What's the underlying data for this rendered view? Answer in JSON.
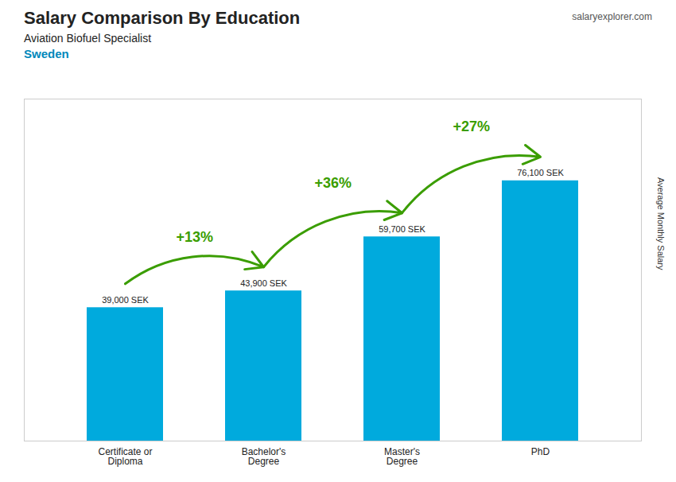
{
  "chart_data": {
    "type": "bar",
    "title": "Salary Comparison By Education",
    "subtitle": [
      "Aviation Biofuel Specialist",
      "Sweden"
    ],
    "caption": "salaryexplorer.com",
    "ylabel": "Average Monthly Salary",
    "categories": [
      "Certificate or\nDiploma",
      "Bachelor's\nDegree",
      "Master's\nDegree",
      "PhD"
    ],
    "values": [
      39000,
      43900,
      59700,
      76100
    ],
    "value_labels": [
      "39,000 SEK",
      "43,900 SEK",
      "59,700 SEK",
      "76,100 SEK"
    ],
    "data_labels": true,
    "annotations": [
      "+13%",
      "+36%",
      "+27%"
    ],
    "color": "#00AADD",
    "ylim": [
      0,
      100000
    ],
    "yticks": [],
    "tick_labels": "x",
    "grid": false
  }
}
